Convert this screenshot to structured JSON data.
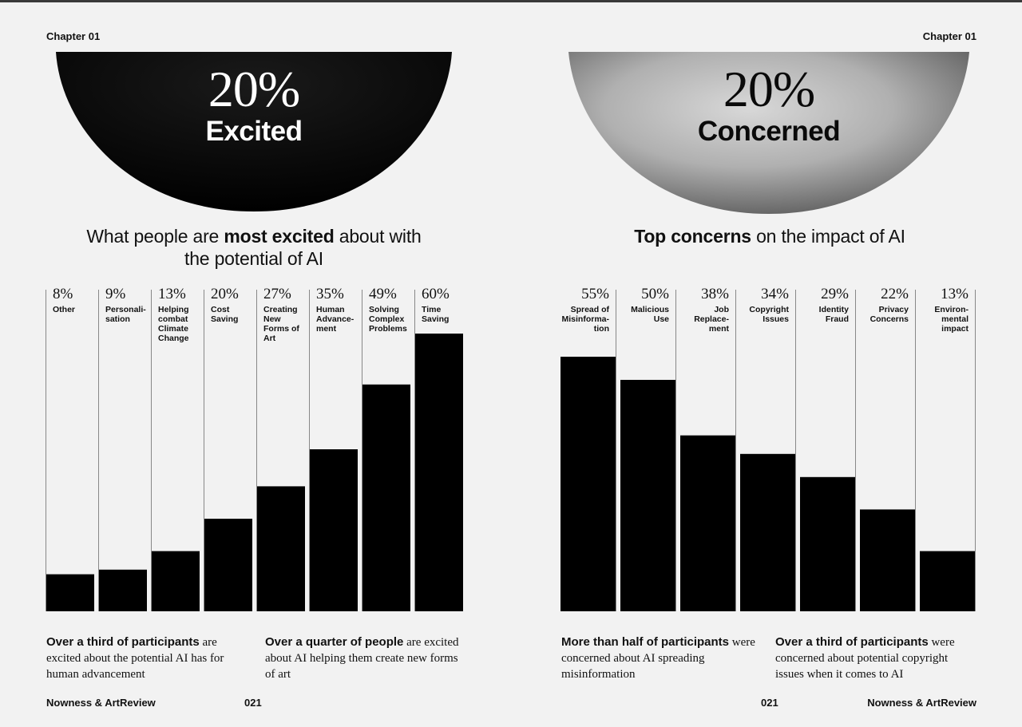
{
  "left": {
    "chapter": "Chapter 01",
    "big_pct": "20%",
    "big_word": "Excited",
    "heading_pre": "What people are ",
    "heading_bold": "most excited",
    "heading_post": " about with",
    "heading_line2": "the potential of AI",
    "captions": [
      {
        "lead": "Over a third of participants",
        "rest": " are excited about the potential AI has for human advancement"
      },
      {
        "lead": "Over a quarter of people",
        "rest": " are excited about AI helping them create new forms of art"
      }
    ],
    "footer_brand": "Nowness & ArtReview",
    "footer_page": "021"
  },
  "right": {
    "chapter": "Chapter 01",
    "big_pct": "20%",
    "big_word": "Concerned",
    "heading_bold": "Top concerns",
    "heading_post": " on the impact of AI",
    "captions": [
      {
        "lead": "More than half of participants",
        "rest": " were concerned about AI spreading misinformation"
      },
      {
        "lead": "Over a third of participants",
        "rest": " were concerned about potential copyright issues when it comes to AI"
      }
    ],
    "footer_page": "021",
    "footer_brand": "Nowness & ArtReview"
  },
  "chart_data": [
    {
      "type": "bar",
      "title": "What people are most excited about with the potential of AI",
      "categories": [
        "Other",
        "Personali-sation",
        "Helping combat Climate Change",
        "Cost Saving",
        "Creating New Forms of Art",
        "Human Advance-ment",
        "Solving Complex Problems",
        "Time Saving"
      ],
      "category_lines": [
        [
          "Other"
        ],
        [
          "Personali-",
          "sation"
        ],
        [
          "Helping",
          "combat",
          "Climate",
          "Change"
        ],
        [
          "Cost",
          "Saving"
        ],
        [
          "Creating",
          "New",
          "Forms of",
          "Art"
        ],
        [
          "Human",
          "Advance-",
          "ment"
        ],
        [
          "Solving",
          "Complex",
          "Problems"
        ],
        [
          "Time",
          "Saving"
        ]
      ],
      "value_labels": [
        "8%",
        "9%",
        "13%",
        "20%",
        "27%",
        "35%",
        "49%",
        "60%"
      ],
      "values": [
        8,
        9,
        13,
        20,
        27,
        35,
        49,
        60
      ],
      "ylim": [
        0,
        60
      ],
      "label_align": "left",
      "bar_color": "#000000"
    },
    {
      "type": "bar",
      "title": "Top concerns on the impact of AI",
      "categories": [
        "Spread of Misinforma-tion",
        "Malicious Use",
        "Job Replace-ment",
        "Copyright Issues",
        "Identity Fraud",
        "Privacy Concerns",
        "Environ-mental impact"
      ],
      "category_lines": [
        [
          "Spread of",
          "Misinforma-",
          "tion"
        ],
        [
          "Malicious",
          "Use"
        ],
        [
          "Job",
          "Replace-",
          "ment"
        ],
        [
          "Copyright",
          "Issues"
        ],
        [
          "Identity",
          "Fraud"
        ],
        [
          "Privacy",
          "Concerns"
        ],
        [
          "Environ-",
          "mental",
          "impact"
        ]
      ],
      "value_labels": [
        "55%",
        "50%",
        "38%",
        "34%",
        "29%",
        "22%",
        "13%"
      ],
      "values": [
        55,
        50,
        38,
        34,
        29,
        22,
        13
      ],
      "ylim": [
        0,
        60
      ],
      "label_align": "right",
      "bar_color": "#000000"
    }
  ]
}
